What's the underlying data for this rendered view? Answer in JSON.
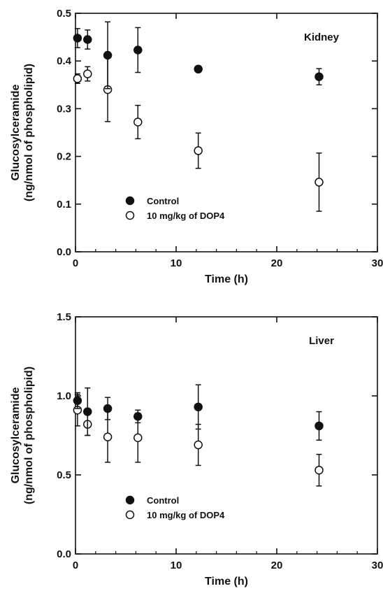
{
  "chart_data": [
    {
      "type": "scatter",
      "panel_label": "Kidney",
      "xlabel": "Time (h)",
      "ylabel": "Glucosylceramide",
      "ylabel2": "(ng/nmol of phospholipid)",
      "xlim": [
        0,
        30
      ],
      "ylim": [
        0,
        0.5
      ],
      "xticks": [
        "0",
        "10",
        "20",
        "30"
      ],
      "xtick_values": [
        0,
        10,
        20,
        30
      ],
      "yticks": [
        "0.0",
        "0.1",
        "0.2",
        "0.3",
        "0.4",
        "0.5"
      ],
      "ytick_values": [
        0,
        0.1,
        0.2,
        0.3,
        0.4,
        0.5
      ],
      "grid": false,
      "legend_position": "bottom-left",
      "series": [
        {
          "name": "Control",
          "marker": "filled-circle",
          "x": [
            0.2,
            1.2,
            3.2,
            6.2,
            12.2,
            24.2
          ],
          "y": [
            0.448,
            0.445,
            0.412,
            0.423,
            0.383,
            0.367
          ],
          "err": [
            0.02,
            0.02,
            0.07,
            0.047,
            0.005,
            0.017
          ]
        },
        {
          "name": "10 mg/kg of DOP4",
          "marker": "open-circle",
          "x": [
            0.2,
            1.2,
            3.2,
            6.2,
            12.2,
            24.2
          ],
          "y": [
            0.363,
            0.373,
            0.34,
            0.272,
            0.212,
            0.146
          ],
          "err": [
            0.01,
            0.015,
            0.067,
            0.035,
            0.037,
            0.061
          ]
        }
      ]
    },
    {
      "type": "scatter",
      "panel_label": "Liver",
      "xlabel": "Time (h)",
      "ylabel": "Glucosylceramide",
      "ylabel2": "(ng/nmol of phospholipid)",
      "xlim": [
        0,
        30
      ],
      "ylim": [
        0,
        1.5
      ],
      "xticks": [
        "0",
        "10",
        "20",
        "30"
      ],
      "xtick_values": [
        0,
        10,
        20,
        30
      ],
      "yticks": [
        "0.0",
        "0.5",
        "1.0",
        "1.5"
      ],
      "ytick_values": [
        0,
        0.5,
        1.0,
        1.5
      ],
      "grid": false,
      "legend_position": "bottom-left",
      "series": [
        {
          "name": "Control",
          "marker": "filled-circle",
          "x": [
            0.2,
            1.2,
            3.2,
            6.2,
            12.2,
            24.2
          ],
          "y": [
            0.97,
            0.9,
            0.92,
            0.87,
            0.93,
            0.81
          ],
          "err": [
            0.05,
            0.15,
            0.07,
            0.04,
            0.14,
            0.09
          ]
        },
        {
          "name": "10 mg/kg of DOP4",
          "marker": "open-circle",
          "x": [
            0.2,
            1.2,
            3.2,
            6.2,
            12.2,
            24.2
          ],
          "y": [
            0.91,
            0.82,
            0.74,
            0.735,
            0.69,
            0.53
          ],
          "err": [
            0.1,
            0.07,
            0.16,
            0.155,
            0.13,
            0.1
          ]
        }
      ]
    }
  ]
}
